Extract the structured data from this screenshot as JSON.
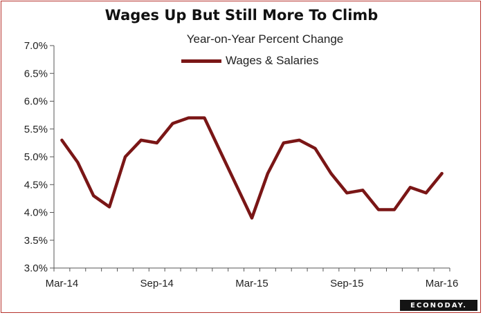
{
  "chart_data": {
    "type": "line",
    "title": "Wages Up But Still More To Climb",
    "subtitle": "Year-on-Year Percent Change",
    "xlabel": "",
    "ylabel": "",
    "legend_position": "top-center",
    "grid": false,
    "ylim": [
      3.0,
      7.0
    ],
    "y_ticks": [
      "3.0%",
      "3.5%",
      "4.0%",
      "4.5%",
      "5.0%",
      "5.5%",
      "6.0%",
      "6.5%",
      "7.0%"
    ],
    "x_ticks": [
      "Mar-14",
      "Sep-14",
      "Mar-15",
      "Sep-15",
      "Mar-16"
    ],
    "x_tick_positions": [
      0,
      6,
      12,
      18,
      24
    ],
    "x": [
      "Mar-14",
      "Apr-14",
      "May-14",
      "Jun-14",
      "Jul-14",
      "Aug-14",
      "Sep-14",
      "Oct-14",
      "Nov-14",
      "Dec-14",
      "Jan-15",
      "Feb-15",
      "Mar-15",
      "Apr-15",
      "May-15",
      "Jun-15",
      "Jul-15",
      "Aug-15",
      "Sep-15",
      "Oct-15",
      "Nov-15",
      "Dec-15",
      "Jan-16",
      "Feb-16",
      "Mar-16"
    ],
    "series": [
      {
        "name": "Wages & Salaries",
        "color": "#7a1616",
        "values": [
          5.3,
          4.9,
          4.3,
          4.1,
          5.0,
          5.3,
          5.25,
          5.6,
          5.7,
          5.7,
          5.1,
          4.5,
          3.9,
          4.7,
          5.25,
          5.3,
          5.15,
          4.7,
          4.35,
          4.4,
          4.05,
          4.05,
          4.45,
          4.35,
          4.7
        ]
      }
    ]
  },
  "brand": {
    "logo_text": "ECONODAY."
  }
}
